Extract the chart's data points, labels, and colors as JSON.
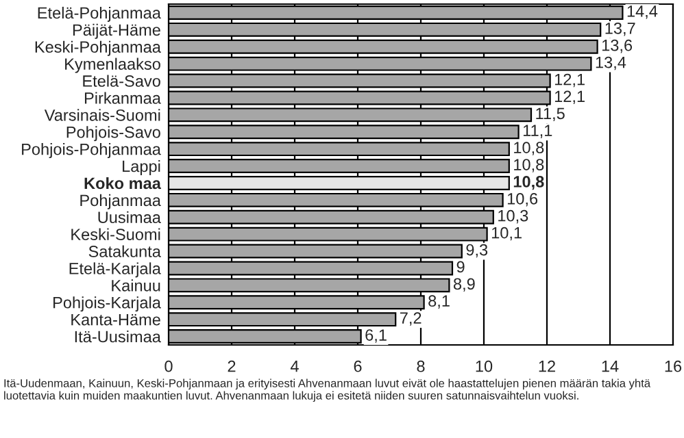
{
  "chart_data": {
    "type": "bar",
    "orientation": "horizontal",
    "categories": [
      "Etelä-Pohjanmaa",
      "Päijät-Häme",
      "Keski-Pohjanmaa",
      "Kymenlaakso",
      "Etelä-Savo",
      "Pirkanmaa",
      "Varsinais-Suomi",
      "Pohjois-Savo",
      "Pohjois-Pohjanmaa",
      "Lappi",
      "Koko maa",
      "Pohjanmaa",
      "Uusimaa",
      "Keski-Suomi",
      "Satakunta",
      "Etelä-Karjala",
      "Kainuu",
      "Pohjois-Karjala",
      "Kanta-Häme",
      "Itä-Uusimaa"
    ],
    "values": [
      14.4,
      13.7,
      13.6,
      13.4,
      12.1,
      12.1,
      11.5,
      11.1,
      10.8,
      10.8,
      10.8,
      10.6,
      10.3,
      10.1,
      9.3,
      9,
      8.9,
      8.1,
      7.2,
      6.1
    ],
    "value_labels": [
      "14,4",
      "13,7",
      "13,6",
      "13,4",
      "12,1",
      "12,1",
      "11,5",
      "11,1",
      "10,8",
      "10,8",
      "10,8",
      "10,6",
      "10,3",
      "10,1",
      "9,3",
      "9",
      "8,9",
      "8,1",
      "7,2",
      "6,1"
    ],
    "colors": [
      "#a6a6a6",
      "#a6a6a6",
      "#a6a6a6",
      "#a6a6a6",
      "#a6a6a6",
      "#a6a6a6",
      "#a6a6a6",
      "#a6a6a6",
      "#a6a6a6",
      "#a6a6a6",
      "#e6e6e6",
      "#a6a6a6",
      "#a6a6a6",
      "#a6a6a6",
      "#a6a6a6",
      "#a6a6a6",
      "#a6a6a6",
      "#a6a6a6",
      "#a6a6a6",
      "#a6a6a6"
    ],
    "xlim": [
      0,
      16
    ],
    "xticks": [
      0,
      2,
      4,
      6,
      8,
      10,
      12,
      14,
      16
    ],
    "grid": "x",
    "annotations": [
      "Itä-Uudenmaan, Kainuun, Keski-Pohjanmaan ja erityisesti Ahvenanmaan luvut eivät ole haastattelujen pienen määrän takia yhtä luotettavia kuin muiden maakuntien luvut. Ahvenanmaan lukuja ei esitetä niiden suuren satunnaisvaihtelun vuoksi."
    ]
  }
}
